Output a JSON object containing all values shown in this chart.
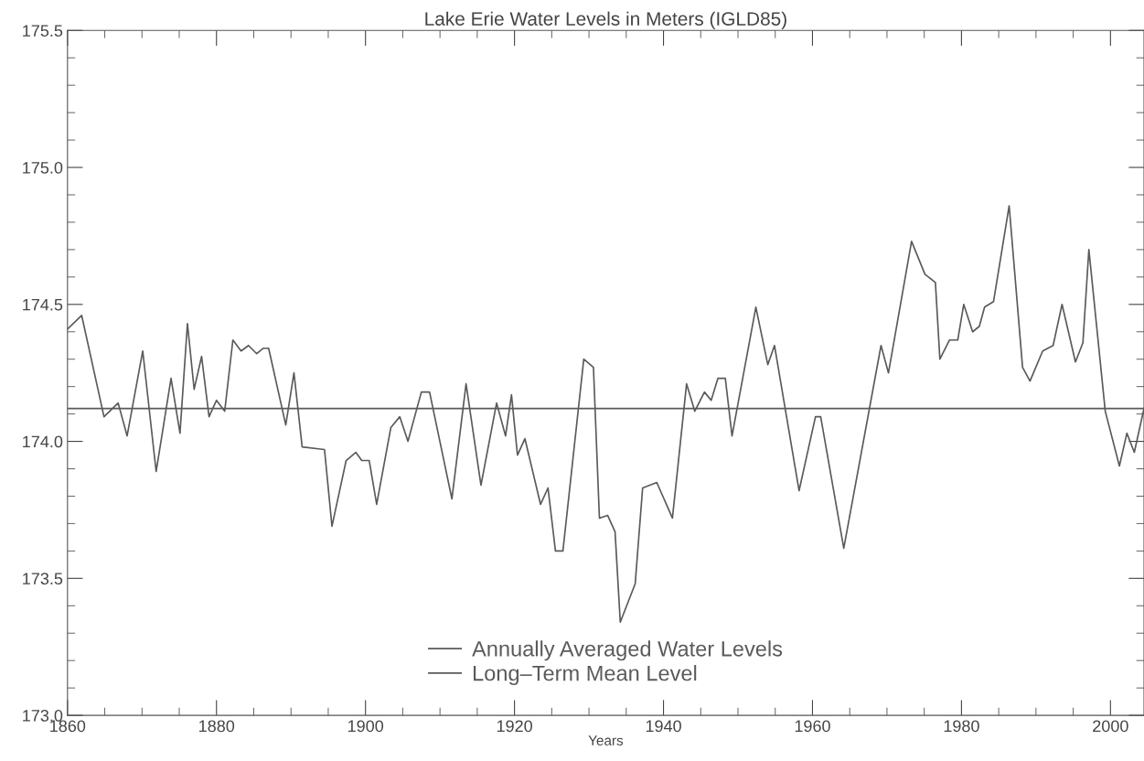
{
  "chart_data": {
    "type": "line",
    "title": "Lake Erie Water Levels in Meters (IGLD85)",
    "xlabel": "Years",
    "xlim": [
      1860,
      2004.5
    ],
    "xticks": [
      1860,
      1880,
      1900,
      1920,
      1940,
      1960,
      1980,
      2000
    ],
    "ylim": [
      173.0,
      175.5
    ],
    "yticks": [
      {
        "value": 173.0,
        "label": "173.0"
      },
      {
        "value": 173.5,
        "label": "173.5"
      },
      {
        "value": 174.0,
        "label": "174.0"
      },
      {
        "value": 174.5,
        "label": "174.5"
      },
      {
        "value": 175.0,
        "label": "175.0"
      },
      {
        "value": 175.5,
        "label": "175.5"
      }
    ],
    "grid": false,
    "legend": "bottom",
    "marker": "none",
    "line_style": "solid",
    "series": [
      {
        "name": "Annually Averaged Water Levels",
        "color": "#5a5a5a",
        "x": [
          1860,
          1861.9,
          1864.9,
          1866.8,
          1868,
          1870.1,
          1871.9,
          1873.9,
          1875.1,
          1876.1,
          1877,
          1878,
          1879,
          1880,
          1881.1,
          1882.2,
          1883.3,
          1884.3,
          1885.4,
          1886.3,
          1887,
          1889.3,
          1890.4,
          1891.5,
          1894.5,
          1895.5,
          1897.4,
          1898.7,
          1899.5,
          1900.5,
          1901.5,
          1903.4,
          1904.6,
          1905.7,
          1907.5,
          1908.6,
          1911.6,
          1913.5,
          1915.5,
          1917.6,
          1918.8,
          1919.6,
          1920.4,
          1921.4,
          1923.5,
          1924.5,
          1925.5,
          1926.5,
          1929.3,
          1930.6,
          1931.4,
          1932.5,
          1933.5,
          1934.2,
          1936.2,
          1937.2,
          1939.1,
          1941.2,
          1943.1,
          1944.2,
          1945.5,
          1946.4,
          1947.3,
          1948.3,
          1949.2,
          1952.4,
          1954.0,
          1954.9,
          1958.2,
          1960.4,
          1961.1,
          1964.2,
          1969.2,
          1970.2,
          1973.3,
          1975.1,
          1976.5,
          1977.1,
          1978.4,
          1979.5,
          1980.3,
          1981.5,
          1982.4,
          1983.1,
          1984.3,
          1986.4,
          1988.2,
          1989.2,
          1990.9,
          1992.3,
          1993.5,
          1995.3,
          1996.3,
          1997.1,
          1999.3,
          2001.2,
          2002.2,
          2003.2,
          2004.5
        ],
        "values": [
          174.41,
          174.46,
          174.09,
          174.14,
          174.02,
          174.33,
          173.89,
          174.23,
          174.03,
          174.43,
          174.19,
          174.31,
          174.09,
          174.15,
          174.11,
          174.37,
          174.33,
          174.35,
          174.32,
          174.34,
          174.34,
          174.06,
          174.25,
          173.98,
          173.97,
          173.69,
          173.93,
          173.96,
          173.93,
          173.93,
          173.77,
          174.05,
          174.09,
          174.0,
          174.18,
          174.18,
          173.79,
          174.21,
          173.84,
          174.14,
          174.02,
          174.17,
          173.95,
          174.01,
          173.77,
          173.83,
          173.6,
          173.6,
          174.3,
          174.27,
          173.72,
          173.73,
          173.67,
          173.34,
          173.48,
          173.83,
          173.85,
          173.72,
          174.21,
          174.11,
          174.18,
          174.15,
          174.23,
          174.23,
          174.02,
          174.49,
          174.28,
          174.35,
          173.82,
          174.09,
          174.09,
          173.61,
          174.35,
          174.25,
          174.73,
          174.61,
          174.58,
          174.3,
          174.37,
          174.37,
          174.5,
          174.4,
          174.42,
          174.49,
          174.51,
          174.86,
          174.27,
          174.22,
          174.33,
          174.35,
          174.5,
          174.29,
          174.36,
          174.7,
          174.11,
          173.91,
          174.03,
          173.96,
          174.12
        ]
      },
      {
        "name": "Long–Term Mean Level",
        "color": "#5a5a5a",
        "x": [
          1860,
          2004.5
        ],
        "values": [
          174.12,
          174.12
        ]
      }
    ]
  }
}
